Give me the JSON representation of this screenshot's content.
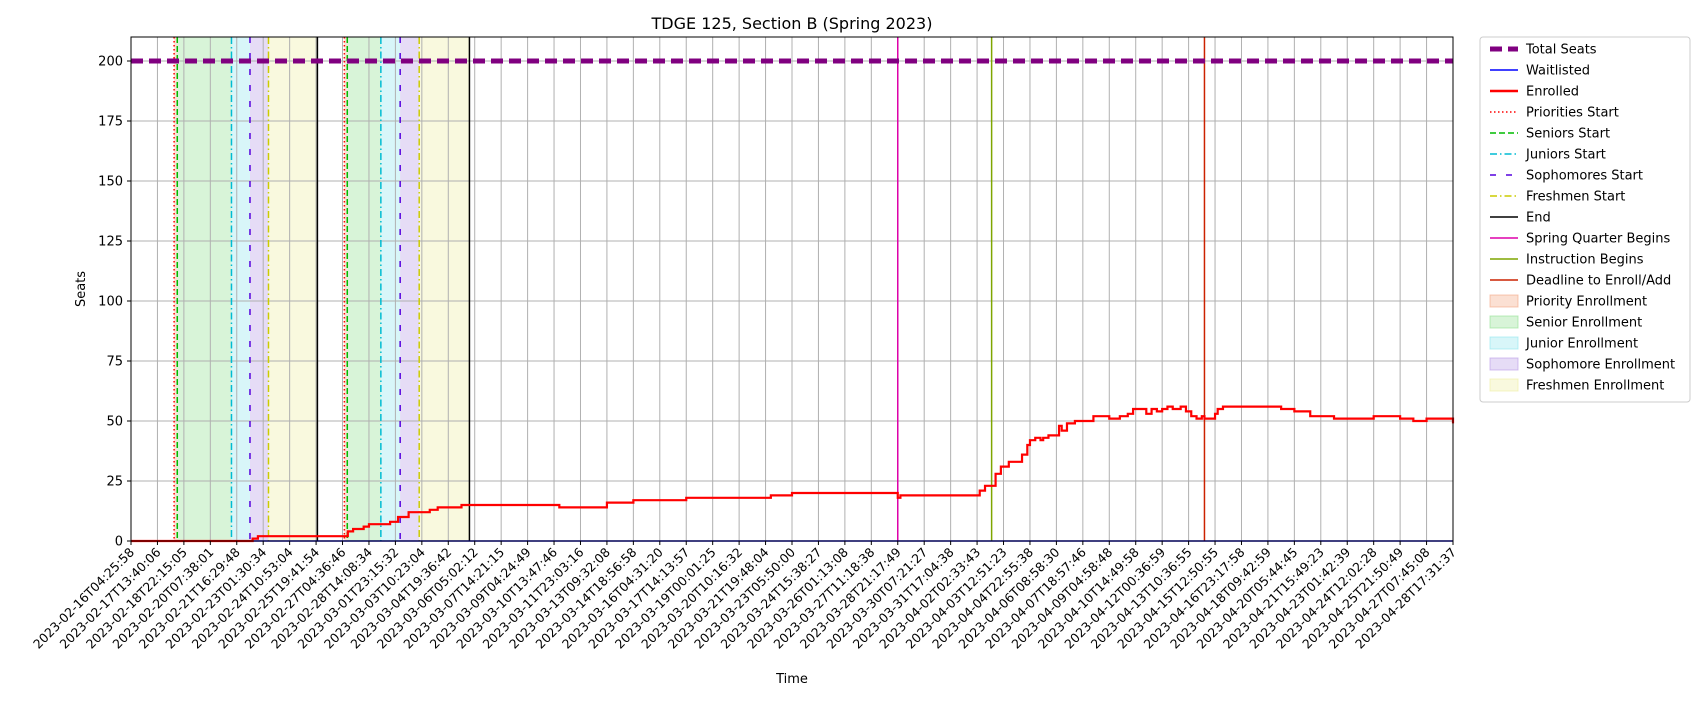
{
  "chart_data": {
    "type": "line",
    "title": "TDGE 125, Section B (Spring 2023)",
    "xlabel": "Time",
    "ylabel": "Seats",
    "ylim": [
      0,
      210
    ],
    "yticks": [
      0,
      25,
      50,
      75,
      100,
      125,
      150,
      175,
      200
    ],
    "grid": true,
    "legend_placement": "outside-right",
    "xticks": [
      "2023-02-16T04:25:58",
      "2023-02-17T13:40:06",
      "2023-02-18T22:15:05",
      "2023-02-20T07:38:01",
      "2023-02-21T16:29:48",
      "2023-02-23T01:30:34",
      "2023-02-24T10:53:04",
      "2023-02-25T19:41:54",
      "2023-02-27T04:36:46",
      "2023-02-28T14:08:34",
      "2023-03-01T23:15:32",
      "2023-03-03T10:23:04",
      "2023-03-04T19:36:42",
      "2023-03-06T05:02:12",
      "2023-03-07T14:21:15",
      "2023-03-09T04:24:49",
      "2023-03-10T13:47:46",
      "2023-03-11T23:03:16",
      "2023-03-13T09:32:08",
      "2023-03-14T18:56:58",
      "2023-03-16T04:31:20",
      "2023-03-17T14:13:57",
      "2023-03-19T00:01:25",
      "2023-03-20T10:16:32",
      "2023-03-21T19:48:04",
      "2023-03-23T05:50:00",
      "2023-03-24T15:38:27",
      "2023-03-26T01:13:08",
      "2023-03-27T11:18:38",
      "2023-03-28T21:17:49",
      "2023-03-30T07:21:27",
      "2023-03-31T17:04:38",
      "2023-04-02T02:33:43",
      "2023-04-03T12:51:23",
      "2023-04-04T22:55:38",
      "2023-04-06T08:58:30",
      "2023-04-07T18:57:46",
      "2023-04-09T04:58:48",
      "2023-04-10T14:49:58",
      "2023-04-12T00:36:59",
      "2023-04-13T10:36:55",
      "2023-04-15T12:50:55",
      "2023-04-16T23:17:58",
      "2023-04-18T09:42:59",
      "2023-04-20T05:44:45",
      "2023-04-21T15:49:23",
      "2023-04-23T01:42:39",
      "2023-04-24T12:02:28",
      "2023-04-25T21:50:49",
      "2023-04-27T07:45:08",
      "2023-04-28T17:31:37"
    ],
    "series": [
      {
        "name": "Total Seats",
        "color": "#800080",
        "style": "dashed-thick",
        "x": [
          0,
          50
        ],
        "y": [
          200,
          200
        ]
      },
      {
        "name": "Waitlisted",
        "color": "#0000ff",
        "style": "solid",
        "x": [
          0,
          50
        ],
        "y": [
          0,
          0
        ]
      },
      {
        "name": "Enrolled",
        "color": "#ff0000",
        "style": "step",
        "x": [
          0,
          4.5,
          4.6,
          4.8,
          5.0,
          5.1,
          8.1,
          8.2,
          8.4,
          8.6,
          8.8,
          9.0,
          9.3,
          9.8,
          10.1,
          10.3,
          10.5,
          10.8,
          11.3,
          11.6,
          12.4,
          12.5,
          13.0,
          16.0,
          16.2,
          18.0,
          19.0,
          21.0,
          24.1,
          24.2,
          25.0,
          25.1,
          25.8,
          29.0,
          29.1,
          31.0,
          32.1,
          32.3,
          32.5,
          32.7,
          32.9,
          33.2,
          33.5,
          33.7,
          33.9,
          34.0,
          34.2,
          34.4,
          34.5,
          34.7,
          34.9,
          35.1,
          35.2,
          35.4,
          35.7,
          36.2,
          36.4,
          36.6,
          37.0,
          37.2,
          37.4,
          37.7,
          37.9,
          38.1,
          38.4,
          38.6,
          38.8,
          39.0,
          39.2,
          39.4,
          39.7,
          39.9,
          40.1,
          40.3,
          40.5,
          40.6,
          41.0,
          41.1,
          41.3,
          41.5,
          43.0,
          43.5,
          44.0,
          44.6,
          45.5,
          46.0,
          47.0,
          48.0,
          48.5,
          49.0,
          50
        ],
        "y": [
          0,
          0,
          1,
          2,
          2,
          2,
          2,
          4,
          5,
          5,
          6,
          7,
          7,
          8,
          10,
          10,
          12,
          12,
          13,
          14,
          14,
          15,
          15,
          15,
          14,
          16,
          17,
          18,
          18,
          19,
          20,
          20,
          20,
          18,
          19,
          19,
          21,
          23,
          23,
          28,
          31,
          33,
          33,
          36,
          40,
          42,
          43,
          42,
          43,
          44,
          44,
          48,
          46,
          49,
          50,
          50,
          52,
          52,
          51,
          51,
          52,
          53,
          55,
          55,
          53,
          55,
          54,
          55,
          56,
          55,
          56,
          54,
          52,
          51,
          52,
          51,
          53,
          55,
          56,
          56,
          56,
          55,
          54,
          52,
          51,
          51,
          52,
          51,
          50,
          51,
          49
        ]
      }
    ],
    "vlines": [
      {
        "name": "Priorities Start",
        "color": "#ff0000",
        "style": "dotted",
        "x": [
          1.63,
          8.07
        ]
      },
      {
        "name": "Seniors Start",
        "color": "#00bb00",
        "style": "dashed",
        "x": [
          1.75,
          8.18
        ]
      },
      {
        "name": "Juniors Start",
        "color": "#00bcd4",
        "style": "dashdot",
        "x": [
          3.8,
          9.45
        ]
      },
      {
        "name": "Sophomores Start",
        "color": "#5500dd",
        "style": "sparse",
        "x": [
          4.5,
          10.18
        ]
      },
      {
        "name": "Freshmen Start",
        "color": "#cccc00",
        "style": "dashdot",
        "x": [
          5.2,
          10.9
        ]
      },
      {
        "name": "End",
        "color": "#000000",
        "style": "solid",
        "x": [
          7.05,
          12.8
        ]
      },
      {
        "name": "Spring Quarter Begins",
        "color": "#dd00aa",
        "style": "solid",
        "x": [
          29.0
        ]
      },
      {
        "name": "Instruction Begins",
        "color": "#7fa600",
        "style": "solid",
        "x": [
          32.55
        ]
      },
      {
        "name": "Deadline to Enroll/Add",
        "color": "#cc2200",
        "style": "solid",
        "x": [
          40.6
        ]
      }
    ],
    "spans": [
      {
        "name": "Priority Enrollment",
        "color": "#f4a582",
        "ranges": [
          [
            1.63,
            1.75
          ],
          [
            8.07,
            8.18
          ]
        ]
      },
      {
        "name": "Senior Enrollment",
        "color": "#8fe08f",
        "ranges": [
          [
            1.75,
            3.8
          ],
          [
            8.18,
            9.45
          ]
        ]
      },
      {
        "name": "Junior Enrollment",
        "color": "#8ee6ee",
        "ranges": [
          [
            3.8,
            4.5
          ],
          [
            9.45,
            10.18
          ]
        ]
      },
      {
        "name": "Sophomore Enrollment",
        "color": "#b89ae6",
        "ranges": [
          [
            4.5,
            5.2
          ],
          [
            10.18,
            10.9
          ]
        ]
      },
      {
        "name": "Freshmen Enrollment",
        "color": "#eeeea0",
        "ranges": [
          [
            5.2,
            7.05
          ],
          [
            10.9,
            12.8
          ]
        ]
      }
    ],
    "legend": [
      {
        "label": "Total Seats",
        "kind": "line",
        "color": "#800080",
        "style": "dashed-thick"
      },
      {
        "label": "Waitlisted",
        "kind": "line",
        "color": "#0000ff",
        "style": "solid"
      },
      {
        "label": "Enrolled",
        "kind": "line",
        "color": "#ff0000",
        "style": "solid-thick"
      },
      {
        "label": "Priorities Start",
        "kind": "line",
        "color": "#ff0000",
        "style": "dotted"
      },
      {
        "label": "Seniors Start",
        "kind": "line",
        "color": "#00bb00",
        "style": "dashed"
      },
      {
        "label": "Juniors Start",
        "kind": "line",
        "color": "#00bcd4",
        "style": "dashdot"
      },
      {
        "label": "Sophomores Start",
        "kind": "line",
        "color": "#5500dd",
        "style": "sparse"
      },
      {
        "label": "Freshmen Start",
        "kind": "line",
        "color": "#cccc00",
        "style": "dashdot"
      },
      {
        "label": "End",
        "kind": "line",
        "color": "#000000",
        "style": "solid"
      },
      {
        "label": "Spring Quarter Begins",
        "kind": "line",
        "color": "#dd00aa",
        "style": "solid"
      },
      {
        "label": "Instruction Begins",
        "kind": "line",
        "color": "#7fa600",
        "style": "solid"
      },
      {
        "label": "Deadline to Enroll/Add",
        "kind": "line",
        "color": "#cc2200",
        "style": "solid"
      },
      {
        "label": "Priority Enrollment",
        "kind": "patch",
        "color": "#f4a582"
      },
      {
        "label": "Senior Enrollment",
        "kind": "patch",
        "color": "#8fe08f"
      },
      {
        "label": "Junior Enrollment",
        "kind": "patch",
        "color": "#8ee6ee"
      },
      {
        "label": "Sophomore Enrollment",
        "kind": "patch",
        "color": "#b89ae6"
      },
      {
        "label": "Freshmen Enrollment",
        "kind": "patch",
        "color": "#eeeea0"
      }
    ]
  }
}
